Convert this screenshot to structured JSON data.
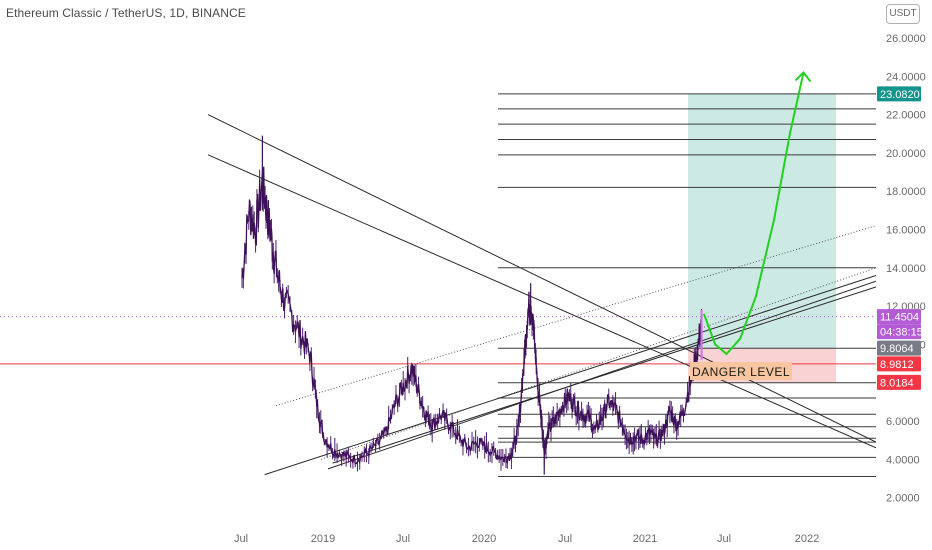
{
  "header": {
    "title": "Ethereum Classic / TetherUS, 1D, BINANCE",
    "currency_button": "USDT"
  },
  "chart_data": {
    "type": "candlestick",
    "yaxis": {
      "ticks": [
        "26.0000",
        "24.0000",
        "22.0000",
        "20.0000",
        "18.0000",
        "16.0000",
        "14.0000",
        "12.0000",
        "10.0000",
        "8.0000",
        "6.0000",
        "4.0000",
        "2.0000"
      ],
      "range": [
        1.2,
        26.8
      ]
    },
    "xaxis": {
      "ticks": [
        "Jul",
        "2019",
        "Jul",
        "2020",
        "Jul",
        "2021",
        "Jul",
        "2022"
      ]
    },
    "price_labels": [
      {
        "value": 23.082,
        "text": "23.0820",
        "color": "#13948a"
      },
      {
        "value": 11.4504,
        "text": "11.4504",
        "color": "#b35cd6"
      },
      {
        "value": 11.4504,
        "text": "04:38:15",
        "color": "#b35cd6"
      },
      {
        "value": 9.8064,
        "text": "9.8064",
        "color": "#787b86"
      },
      {
        "value": 8.9812,
        "text": "8.9812",
        "color": "#f23645"
      },
      {
        "value": 8.0184,
        "text": "8.0184",
        "color": "#f23645"
      }
    ],
    "annotations": [
      {
        "text": "DANGER LEVEL",
        "color": "#f7c59f"
      }
    ],
    "horizontal_levels": [
      23.08,
      22.3,
      21.5,
      20.7,
      19.9,
      18.2,
      14.0,
      9.8,
      8.0,
      7.2,
      6.35,
      5.7,
      5.1,
      4.9,
      4.1,
      3.1
    ],
    "current_price": 11.45,
    "red_level": 8.98,
    "position": {
      "target": 23.082,
      "entry": 9.8064,
      "stop": 8.0184
    },
    "price_series": [
      {
        "t": 0.0,
        "p": 13.5
      },
      {
        "t": 0.3,
        "p": 17.0
      },
      {
        "t": 0.6,
        "p": 16.0
      },
      {
        "t": 0.9,
        "p": 18.5
      },
      {
        "t": 1.1,
        "p": 17.0
      },
      {
        "t": 1.3,
        "p": 15.5
      },
      {
        "t": 1.5,
        "p": 14.0
      },
      {
        "t": 1.8,
        "p": 12.5
      },
      {
        "t": 2.2,
        "p": 11.5
      },
      {
        "t": 2.6,
        "p": 10.5
      },
      {
        "t": 3.0,
        "p": 9.5
      },
      {
        "t": 3.3,
        "p": 7.0
      },
      {
        "t": 3.6,
        "p": 5.2
      },
      {
        "t": 4.0,
        "p": 4.5
      },
      {
        "t": 4.5,
        "p": 4.2
      },
      {
        "t": 5.0,
        "p": 4.0
      },
      {
        "t": 5.5,
        "p": 4.3
      },
      {
        "t": 6.0,
        "p": 4.8
      },
      {
        "t": 6.4,
        "p": 5.5
      },
      {
        "t": 6.8,
        "p": 7.0
      },
      {
        "t": 7.2,
        "p": 8.0
      },
      {
        "t": 7.5,
        "p": 8.8
      },
      {
        "t": 7.8,
        "p": 7.5
      },
      {
        "t": 8.1,
        "p": 6.4
      },
      {
        "t": 8.4,
        "p": 5.8
      },
      {
        "t": 8.8,
        "p": 6.3
      },
      {
        "t": 9.2,
        "p": 5.8
      },
      {
        "t": 9.6,
        "p": 5.1
      },
      {
        "t": 10.0,
        "p": 4.6
      },
      {
        "t": 10.4,
        "p": 4.9
      },
      {
        "t": 10.8,
        "p": 4.6
      },
      {
        "t": 11.2,
        "p": 4.3
      },
      {
        "t": 11.6,
        "p": 4.0
      },
      {
        "t": 11.9,
        "p": 4.3
      },
      {
        "t": 12.2,
        "p": 5.5
      },
      {
        "t": 12.45,
        "p": 9.0
      },
      {
        "t": 12.6,
        "p": 11.5
      },
      {
        "t": 12.75,
        "p": 12.5
      },
      {
        "t": 12.9,
        "p": 10.5
      },
      {
        "t": 13.05,
        "p": 8.0
      },
      {
        "t": 13.2,
        "p": 6.5
      },
      {
        "t": 13.35,
        "p": 4.5
      },
      {
        "t": 13.55,
        "p": 5.5
      },
      {
        "t": 13.8,
        "p": 6.0
      },
      {
        "t": 14.1,
        "p": 6.7
      },
      {
        "t": 14.4,
        "p": 7.3
      },
      {
        "t": 14.7,
        "p": 6.8
      },
      {
        "t": 15.0,
        "p": 6.4
      },
      {
        "t": 15.3,
        "p": 6.2
      },
      {
        "t": 15.6,
        "p": 5.5
      },
      {
        "t": 15.9,
        "p": 6.2
      },
      {
        "t": 16.2,
        "p": 7.0
      },
      {
        "t": 16.5,
        "p": 6.6
      },
      {
        "t": 16.8,
        "p": 5.8
      },
      {
        "t": 17.1,
        "p": 5.0
      },
      {
        "t": 17.4,
        "p": 5.2
      },
      {
        "t": 17.7,
        "p": 5.0
      },
      {
        "t": 18.0,
        "p": 5.4
      },
      {
        "t": 18.3,
        "p": 5.0
      },
      {
        "t": 18.6,
        "p": 5.4
      },
      {
        "t": 18.9,
        "p": 6.5
      },
      {
        "t": 19.2,
        "p": 5.8
      },
      {
        "t": 19.5,
        "p": 6.5
      },
      {
        "t": 19.8,
        "p": 8.0
      },
      {
        "t": 20.1,
        "p": 9.5
      },
      {
        "t": 20.3,
        "p": 11.45
      }
    ],
    "projection": [
      {
        "t": 20.4,
        "p": 11.6
      },
      {
        "t": 20.9,
        "p": 10.0
      },
      {
        "t": 21.4,
        "p": 9.5
      },
      {
        "t": 22.0,
        "p": 10.3
      },
      {
        "t": 22.7,
        "p": 12.5
      },
      {
        "t": 23.5,
        "p": 16.5
      },
      {
        "t": 24.2,
        "p": 21.0
      },
      {
        "t": 24.8,
        "p": 24.2
      }
    ],
    "trendlines": [
      {
        "t1": -1.5,
        "p1": 22.0,
        "t2": 28.0,
        "p2": 4.9
      },
      {
        "t1": -1.5,
        "p1": 19.9,
        "t2": 28.0,
        "p2": 4.6
      },
      {
        "t1": 1.0,
        "p1": 3.2,
        "t2": 28.0,
        "p2": 13.6
      },
      {
        "t1": 3.8,
        "p1": 3.5,
        "t2": 28.0,
        "p2": 13.3
      },
      {
        "t1": 4.0,
        "p1": 3.8,
        "t2": 28.0,
        "p2": 13.0
      }
    ],
    "dotted_trendlines": [
      {
        "t1": 1.5,
        "p1": 6.8,
        "t2": 28.0,
        "p2": 16.2
      },
      {
        "t1": 3.5,
        "p1": 4.0,
        "t2": 28.0,
        "p2": 14.0
      }
    ]
  }
}
